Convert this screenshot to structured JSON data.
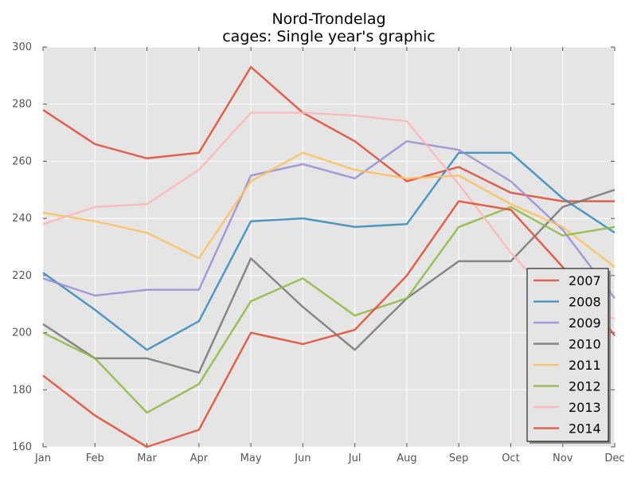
{
  "chart_data": {
    "type": "line",
    "title": "Nord-Trondelag",
    "subtitle": "cages: Single year's graphic",
    "xlabel": "",
    "ylabel": "",
    "categories": [
      "Jan",
      "Feb",
      "Mar",
      "Apr",
      "May",
      "Jun",
      "Jul",
      "Aug",
      "Sep",
      "Oct",
      "Nov",
      "Dec"
    ],
    "ylim": [
      160,
      300
    ],
    "yticks": [
      160,
      180,
      200,
      220,
      240,
      260,
      280,
      300
    ],
    "grid": true,
    "legend_position": "lower-right",
    "background": "#e5e5e5",
    "series": [
      {
        "name": "2007",
        "color": "#e24a33",
        "values": [
          278,
          266,
          261,
          263,
          293,
          277,
          267,
          253,
          258,
          249,
          246,
          246
        ]
      },
      {
        "name": "2008",
        "color": "#348abd",
        "values": [
          221,
          208,
          194,
          204,
          239,
          240,
          237,
          238,
          263,
          263,
          247,
          235
        ]
      },
      {
        "name": "2009",
        "color": "#988ed5",
        "values": [
          219,
          213,
          215,
          215,
          255,
          259,
          254,
          267,
          264,
          253,
          236,
          212
        ]
      },
      {
        "name": "2010",
        "color": "#777777",
        "values": [
          203,
          191,
          191,
          186,
          226,
          209,
          194,
          212,
          225,
          225,
          244,
          250
        ]
      },
      {
        "name": "2011",
        "color": "#fbc15e",
        "values": [
          242,
          239,
          235,
          226,
          253,
          263,
          257,
          254,
          255,
          245,
          237,
          223
        ]
      },
      {
        "name": "2012",
        "color": "#8eba42",
        "values": [
          200,
          191,
          172,
          182,
          211,
          219,
          206,
          212,
          237,
          244,
          234,
          237
        ]
      },
      {
        "name": "2013",
        "color": "#ffb5b8",
        "values": [
          238,
          244,
          245,
          257,
          277,
          277,
          276,
          274,
          252,
          228,
          208,
          205
        ]
      },
      {
        "name": "2014",
        "color": "#e24a33",
        "values": [
          185,
          171,
          160,
          166,
          200,
          196,
          201,
          220,
          246,
          243,
          223,
          199
        ]
      }
    ]
  }
}
